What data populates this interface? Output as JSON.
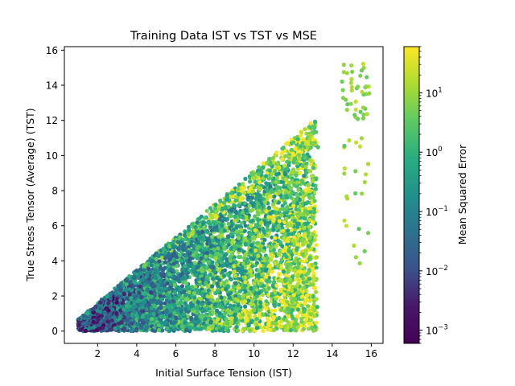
{
  "chart_data": {
    "type": "scatter",
    "title": "Training Data IST vs TST vs MSE",
    "xlabel": "Initial Surface Tension (IST)",
    "ylabel": "True Stress Tensor (Average) (TST)",
    "xlim": [
      0.3,
      16.6
    ],
    "ylim": [
      -0.7,
      16.2
    ],
    "xticks": [
      2,
      4,
      6,
      8,
      10,
      12,
      14,
      16
    ],
    "yticks": [
      0,
      2,
      4,
      6,
      8,
      10,
      12,
      14,
      16
    ],
    "colorbar": {
      "label": "Mean Squared Error",
      "scale": "log",
      "range": [
        0.0006,
        60
      ],
      "ticks": [
        {
          "value": 0.001,
          "base": "10",
          "exp": "−3"
        },
        {
          "value": 0.01,
          "base": "10",
          "exp": "−2"
        },
        {
          "value": 0.1,
          "base": "10",
          "exp": "−1"
        },
        {
          "value": 1,
          "base": "10",
          "exp": "0"
        },
        {
          "value": 10,
          "base": "10",
          "exp": "1"
        }
      ],
      "colormap": "viridis"
    },
    "grid": false,
    "points_sample": [
      [
        1.2,
        0.2,
        0.05
      ],
      [
        1.5,
        0.8,
        0.02
      ],
      [
        2.0,
        1.5,
        0.03
      ],
      [
        3.0,
        2.0,
        0.02
      ],
      [
        4.0,
        3.0,
        0.05
      ],
      [
        5.0,
        4.5,
        0.1
      ],
      [
        6.0,
        5.5,
        0.3
      ],
      [
        7.0,
        6.5,
        0.5
      ],
      [
        8.0,
        7.5,
        1.0
      ],
      [
        9.0,
        8.5,
        2.0
      ],
      [
        10.0,
        9.5,
        3.0
      ],
      [
        11.0,
        10.5,
        5.0
      ],
      [
        12.0,
        11.5,
        8.0
      ],
      [
        12.5,
        12.3,
        20.0
      ],
      [
        13.0,
        12.8,
        15.0
      ],
      [
        14.5,
        14.2,
        30.0
      ],
      [
        15.0,
        14.8,
        25.0
      ],
      [
        15.5,
        15.2,
        35.0
      ],
      [
        15.8,
        13.8,
        20.0
      ],
      [
        15.2,
        4.3,
        15.0
      ],
      [
        15.5,
        3.7,
        20.0
      ],
      [
        14.5,
        8.7,
        5.0
      ],
      [
        15.0,
        9.9,
        8.0
      ],
      [
        13.2,
        2.3,
        0.5
      ],
      [
        13.2,
        0.2,
        0.3
      ],
      [
        10.0,
        0.1,
        0.1
      ],
      [
        8.0,
        0.05,
        0.05
      ],
      [
        11.0,
        2.0,
        1.0
      ],
      [
        12.0,
        5.0,
        3.0
      ]
    ]
  }
}
